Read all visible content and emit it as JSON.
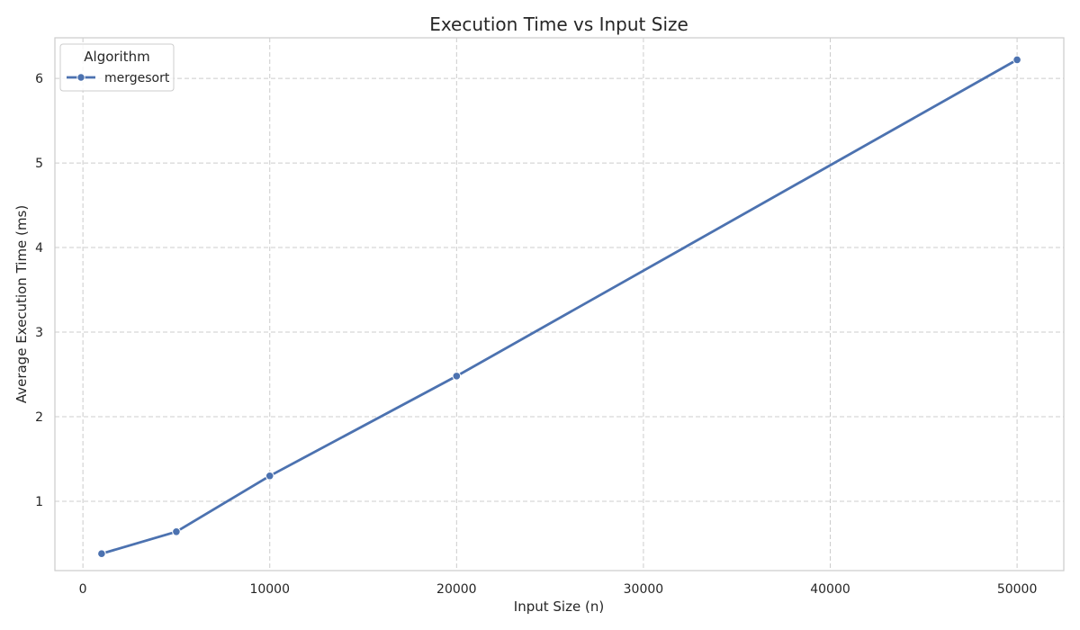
{
  "chart_data": {
    "type": "line",
    "title": "Execution Time vs Input Size",
    "xlabel": "Input Size (n)",
    "ylabel": "Average Execution Time (ms)",
    "xlim": [
      -1500,
      52500
    ],
    "ylim": [
      0.18,
      6.48
    ],
    "xticks": [
      0,
      10000,
      20000,
      30000,
      40000,
      50000
    ],
    "yticks": [
      1,
      2,
      3,
      4,
      5,
      6
    ],
    "grid": true,
    "legend": {
      "title": "Algorithm",
      "position": "top-left"
    },
    "series": [
      {
        "name": "mergesort",
        "color": "#4c72b0",
        "x": [
          1000,
          5000,
          10000,
          20000,
          50000
        ],
        "y": [
          0.38,
          0.64,
          1.3,
          2.48,
          6.22
        ]
      }
    ]
  }
}
